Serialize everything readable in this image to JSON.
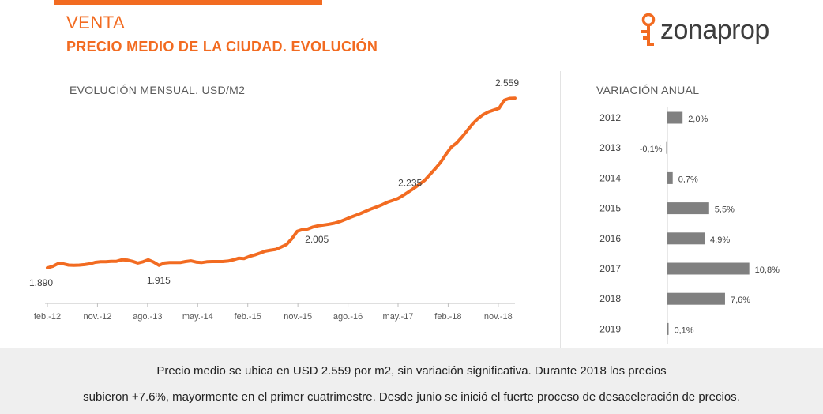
{
  "header": {
    "title": "VENTA",
    "subtitle": "PRECIO MEDIO DE LA CIUDAD. EVOLUCIÓN",
    "brand": "zonaprop",
    "accent_color": "#f26b21",
    "logo_icon": "key-icon"
  },
  "line_chart_title": "EVOLUCIÓN MENSUAL. USD/M2",
  "bar_chart_title": "VARIACIÓN ANUAL",
  "footer": {
    "line1": "Precio medio se ubica en USD 2.559 por m2, sin variación significativa. Durante 2018 los precios",
    "line2": "subieron +7.6%, mayormente en el primer cuatrimestre. Desde junio se inició el fuerte proceso de desaceleración de precios."
  },
  "chart_data": [
    {
      "type": "line",
      "title": "EVOLUCIÓN MENSUAL. USD/M2",
      "x_tick_labels": [
        "feb.-12",
        "nov.-12",
        "ago.-13",
        "may.-14",
        "feb.-15",
        "nov.-15",
        "ago.-16",
        "may.-17",
        "feb.-18",
        "nov.-18"
      ],
      "x_start": "feb.-12",
      "x_end": "feb.-19",
      "ylim": [
        1750,
        2650
      ],
      "grid": false,
      "color": "#f26b21",
      "series": [
        {
          "values": [
            1890,
            1896,
            1907,
            1906,
            1901,
            1900,
            1901,
            1903,
            1906,
            1912,
            1914,
            1914,
            1916,
            1916,
            1922,
            1921,
            1916,
            1909,
            1914,
            1922,
            1913,
            1900,
            1909,
            1911,
            1911,
            1911,
            1915,
            1918,
            1913,
            1911,
            1914,
            1915,
            1915,
            1915,
            1917,
            1922,
            1928,
            1927,
            1935,
            1941,
            1948,
            1956,
            1960,
            1963,
            1972,
            1982,
            2005,
            2034,
            2041,
            2043,
            2051,
            2056,
            2059,
            2062,
            2066,
            2072,
            2080,
            2089,
            2097,
            2105,
            2114,
            2123,
            2131,
            2139,
            2149,
            2156,
            2164,
            2176,
            2190,
            2204,
            2219,
            2235,
            2258,
            2281,
            2306,
            2337,
            2366,
            2382,
            2405,
            2431,
            2457,
            2478,
            2494,
            2505,
            2512,
            2519,
            2551,
            2558,
            2559
          ]
        }
      ],
      "annotations": [
        {
          "x": "feb.-12",
          "value": 1890,
          "label": "1.890"
        },
        {
          "x": "ago.-13",
          "value": 1915,
          "label": "1.915"
        },
        {
          "x": "dic.-15",
          "value": 2005,
          "label": "2.005"
        },
        {
          "x": "sep.-17",
          "value": 2235,
          "label": "2.235"
        },
        {
          "x": "feb.-19",
          "value": 2559,
          "label": "2.559"
        }
      ]
    },
    {
      "type": "bar",
      "orientation": "horizontal",
      "title": "VARIACIÓN ANUAL",
      "categories": [
        "2012",
        "2013",
        "2014",
        "2015",
        "2016",
        "2017",
        "2018",
        "2019"
      ],
      "values": [
        2.0,
        -0.1,
        0.7,
        5.5,
        4.9,
        10.8,
        7.6,
        0.1
      ],
      "value_labels": [
        "2,0%",
        "-0,1%",
        "0,7%",
        "5,5%",
        "4,9%",
        "10,8%",
        "7,6%",
        "0,1%"
      ],
      "xlim": [
        -0.2,
        11
      ],
      "color": "#808080"
    }
  ]
}
